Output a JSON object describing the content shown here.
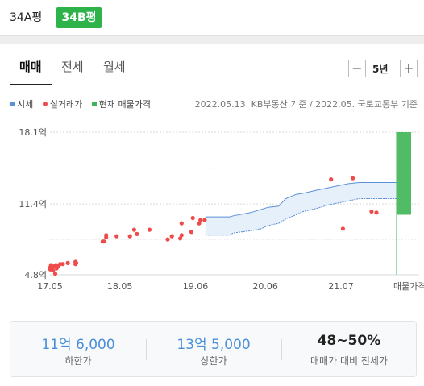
{
  "type_tabs": [
    {
      "label": "34A평",
      "active": false
    },
    {
      "label": "34B평",
      "active": true
    }
  ],
  "deal_tabs": [
    {
      "label": "매매",
      "active": true
    },
    {
      "label": "전세",
      "active": false
    },
    {
      "label": "월세",
      "active": false
    }
  ],
  "period": {
    "minus": "−",
    "label": "5년",
    "plus": "+"
  },
  "legend": {
    "market_label": "시세",
    "market_color": "#5b8fd6",
    "trade_label": "실거래가",
    "trade_color": "#ef4b4b",
    "current_label": "현재 매물가격",
    "current_color": "#3fb454"
  },
  "source": "2022.05.13. KB부동산 기준 / 2022.05. 국토교통부 기준",
  "chart_data": {
    "type": "scatter",
    "y_unit": "억",
    "ylim": [
      4.8,
      18.1
    ],
    "y_ticks": [
      "18.1억",
      "11.4억",
      "4.8억"
    ],
    "y_tick_values": [
      18.1,
      11.4,
      4.8
    ],
    "x_ticks": [
      "17.05",
      "18.05",
      "19.06",
      "20.06",
      "21.07",
      "매물가격"
    ],
    "x_tick_values": [
      2017.375,
      2018.375,
      2019.458,
      2020.458,
      2021.542
    ],
    "x_range": [
      2017.375,
      2022.35
    ],
    "grid": "horizontal-dashed",
    "market_band": {
      "name": "시세",
      "x": [
        2019.6,
        2019.95,
        2020.0,
        2020.25,
        2020.4,
        2020.5,
        2020.65,
        2020.75,
        2020.9,
        2021.0,
        2021.2,
        2021.35,
        2021.5,
        2021.65,
        2021.8,
        2022.0,
        2022.35
      ],
      "upper": [
        10.2,
        10.2,
        10.3,
        10.6,
        10.9,
        11.1,
        11.2,
        11.9,
        12.3,
        12.4,
        12.7,
        12.9,
        13.1,
        13.3,
        13.4,
        13.4,
        13.4
      ],
      "lower": [
        8.5,
        8.5,
        8.7,
        8.9,
        9.1,
        9.4,
        9.6,
        10.0,
        10.4,
        10.7,
        11.0,
        11.3,
        11.5,
        11.7,
        11.9,
        11.9,
        11.9
      ]
    },
    "trades": {
      "name": "실거래가",
      "points": [
        [
          2017.38,
          5.3
        ],
        [
          2017.38,
          5.5
        ],
        [
          2017.39,
          5.7
        ],
        [
          2017.41,
          5.5
        ],
        [
          2017.42,
          5.2
        ],
        [
          2017.44,
          5.6
        ],
        [
          2017.46,
          5.7
        ],
        [
          2017.47,
          5.4
        ],
        [
          2017.49,
          5.6
        ],
        [
          2017.52,
          5.8
        ],
        [
          2017.56,
          5.8
        ],
        [
          2017.63,
          5.9
        ],
        [
          2017.74,
          5.8
        ],
        [
          2017.75,
          5.9
        ],
        [
          2017.74,
          6.0
        ],
        [
          2017.45,
          4.9
        ],
        [
          2018.13,
          7.9
        ],
        [
          2018.15,
          7.9
        ],
        [
          2018.18,
          8.3
        ],
        [
          2018.18,
          8.5
        ],
        [
          2018.33,
          8.4
        ],
        [
          2018.52,
          8.4
        ],
        [
          2018.58,
          9.0
        ],
        [
          2018.62,
          8.6
        ],
        [
          2018.8,
          9.0
        ],
        [
          2019.06,
          8.1
        ],
        [
          2019.12,
          8.4
        ],
        [
          2019.24,
          8.2
        ],
        [
          2019.26,
          8.5
        ],
        [
          2019.26,
          9.6
        ],
        [
          2019.4,
          8.8
        ],
        [
          2019.42,
          10.1
        ],
        [
          2019.51,
          9.6
        ],
        [
          2019.53,
          9.9
        ],
        [
          2019.59,
          9.9
        ],
        [
          2021.4,
          13.7
        ],
        [
          2021.57,
          9.1
        ],
        [
          2021.71,
          13.8
        ],
        [
          2021.98,
          10.7
        ],
        [
          2022.05,
          10.6
        ]
      ]
    },
    "current_listing": {
      "name": "현재 매물가격",
      "range": [
        10.4,
        18.1
      ]
    }
  },
  "summary": [
    {
      "value": "11억 6,000",
      "label": "하한가"
    },
    {
      "value": "13억 5,000",
      "label": "상한가"
    },
    {
      "value": "48~50%",
      "label": "매매가 대비 전세가"
    }
  ]
}
